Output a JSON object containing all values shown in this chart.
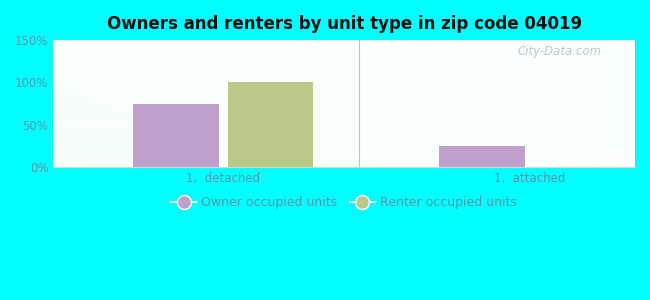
{
  "title": "Owners and renters by unit type in zip code 04019",
  "categories": [
    "1,  detached",
    "1,  attached"
  ],
  "owner_values": [
    75,
    25
  ],
  "renter_values": [
    100,
    0
  ],
  "owner_color": "#bf9fcc",
  "renter_color": "#b8c98a",
  "ylim": [
    0,
    150
  ],
  "yticks": [
    0,
    50,
    100,
    150
  ],
  "ytick_labels": [
    "0%",
    "50%",
    "100%",
    "150%"
  ],
  "legend_owner": "Owner occupied units",
  "legend_renter": "Renter occupied units",
  "watermark": "City-Data.com",
  "bar_width": 0.28,
  "group_positions": [
    0.35,
    1.35
  ],
  "fig_bg": "#00ffff",
  "tick_color": "#5599aa",
  "title_color": "#111111"
}
